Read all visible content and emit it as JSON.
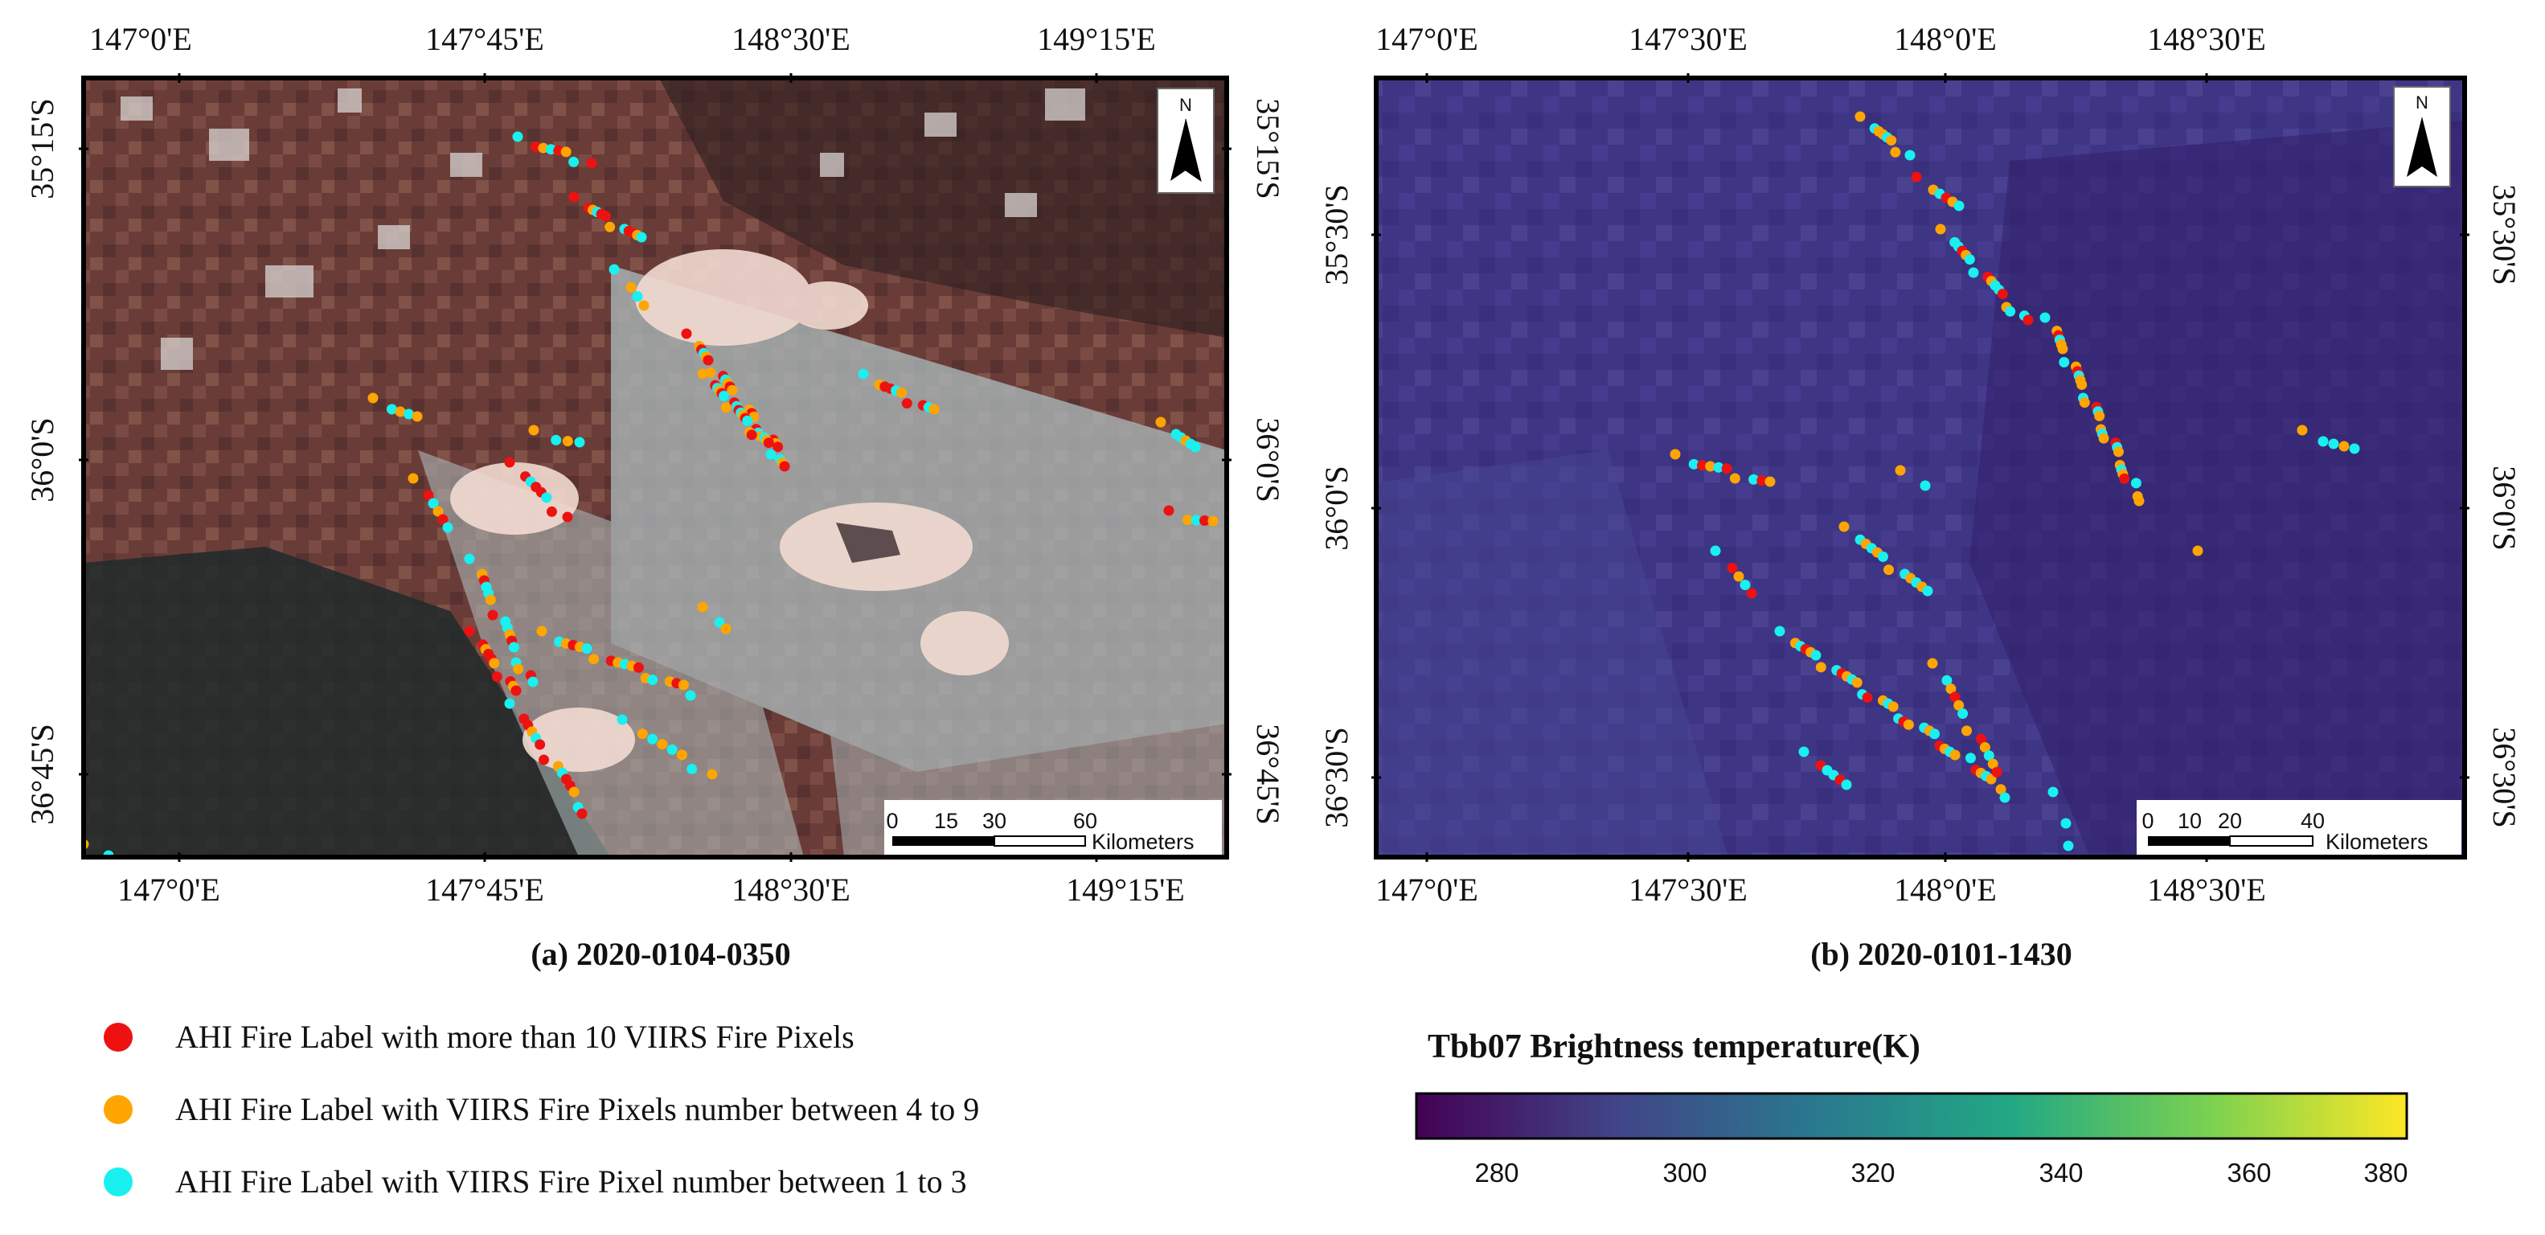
{
  "panel_a": {
    "caption": "(a) 2020-0104-0350",
    "top_ticks": [
      "147°0'E",
      "147°45'E",
      "148°30'E",
      "149°15'E"
    ],
    "bottom_ticks": [
      "147°0'E",
      "147°45'E",
      "148°30'E",
      "149°15'E"
    ],
    "left_ticks": [
      "35°15'S",
      "36°0'S",
      "36°45'S"
    ],
    "right_ticks": [
      "35°15'S",
      "36°0'S",
      "36°45'S"
    ],
    "scale_labels": [
      "0",
      "15",
      "30",
      "60"
    ],
    "scale_unit": "Kilometers",
    "north_label": "N"
  },
  "panel_b": {
    "caption": "(b) 2020-0101-1430",
    "top_ticks": [
      "147°0'E",
      "147°30'E",
      "148°0'E",
      "148°30'E"
    ],
    "bottom_ticks": [
      "147°0'E",
      "147°30'E",
      "148°0'E",
      "148°30'E"
    ],
    "left_ticks": [
      "35°30'S",
      "36°0'S",
      "36°30'S"
    ],
    "right_ticks": [
      "35°30'S",
      "36°0'S",
      "36°30'S"
    ],
    "scale_labels": [
      "0",
      "10",
      "20",
      "40"
    ],
    "scale_unit": "Kilometers",
    "north_label": "N"
  },
  "legend": {
    "items": [
      {
        "label": "AHI Fire Label with more than 10 VIIRS Fire Pixels",
        "color": "#ee1111"
      },
      {
        "label": "AHI Fire Label with VIIRS Fire Pixels number between 4 to 9",
        "color": "#ffa500"
      },
      {
        "label": "AHI Fire Label with VIIRS Fire Pixel number between 1 to 3",
        "color": "#19f0f0"
      }
    ]
  },
  "colorbar": {
    "title": "Tbb07 Brightness temperature(K)",
    "ticks": [
      "280",
      "300",
      "320",
      "340",
      "360",
      "380"
    ],
    "colormap": "viridis",
    "colors": [
      "#440154",
      "#3b528b",
      "#21918c",
      "#5ec962",
      "#fde725"
    ]
  }
}
